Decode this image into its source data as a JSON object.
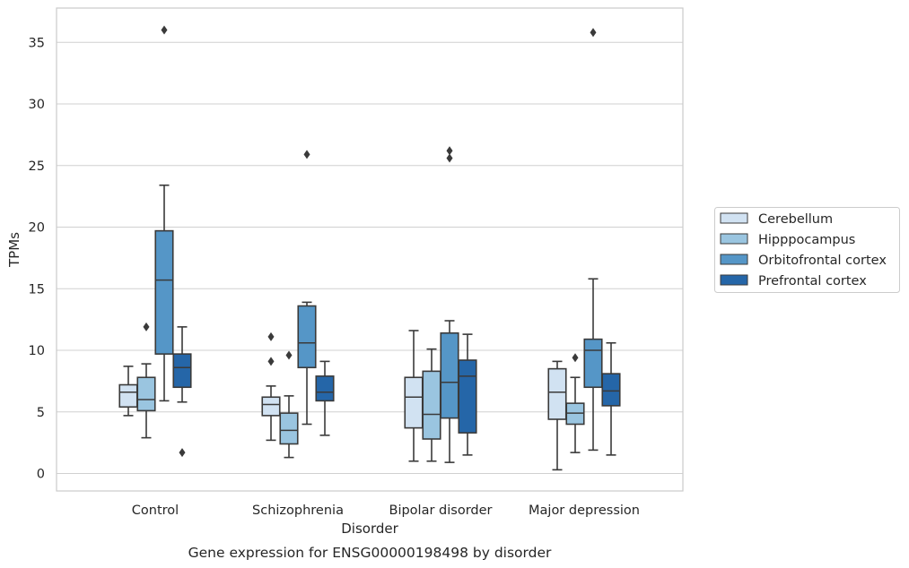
{
  "caption": "Gene expression for ENSG00000198498 by disorder",
  "chart_data": {
    "type": "box",
    "xlabel": "Disorder",
    "ylabel": "TPMs",
    "categories": [
      "Control",
      "Schizophrenia",
      "Bipolar disorder",
      "Major depression"
    ],
    "ylim": [
      -1.5,
      37.3
    ],
    "yticks": [
      0,
      5,
      10,
      15,
      20,
      25,
      30,
      35
    ],
    "grid": true,
    "legend_position": "right",
    "series": [
      {
        "name": "Cerebellum",
        "color": "#d1e2f2",
        "boxes": [
          {
            "whislo": 4.7,
            "q1": 5.4,
            "med": 6.6,
            "q3": 7.2,
            "whishi": 8.7,
            "fliers": []
          },
          {
            "whislo": 2.7,
            "q1": 4.7,
            "med": 5.6,
            "q3": 6.2,
            "whishi": 7.1,
            "fliers": [
              11.1,
              9.1
            ]
          },
          {
            "whislo": 1.0,
            "q1": 3.7,
            "med": 6.2,
            "q3": 7.8,
            "whishi": 11.6,
            "fliers": []
          },
          {
            "whislo": 0.3,
            "q1": 4.4,
            "med": 6.6,
            "q3": 8.5,
            "whishi": 9.1,
            "fliers": []
          }
        ]
      },
      {
        "name": "Hipppocampus",
        "color": "#9ac5e0",
        "boxes": [
          {
            "whislo": 2.9,
            "q1": 5.1,
            "med": 6.0,
            "q3": 7.8,
            "whishi": 8.9,
            "fliers": [
              11.9
            ]
          },
          {
            "whislo": 1.3,
            "q1": 2.4,
            "med": 3.5,
            "q3": 4.9,
            "whishi": 6.3,
            "fliers": [
              9.6
            ]
          },
          {
            "whislo": 1.0,
            "q1": 2.8,
            "med": 4.8,
            "q3": 8.3,
            "whishi": 10.1,
            "fliers": []
          },
          {
            "whislo": 1.7,
            "q1": 4.0,
            "med": 4.9,
            "q3": 5.7,
            "whishi": 7.8,
            "fliers": [
              9.4
            ]
          }
        ]
      },
      {
        "name": "Orbitofrontal cortex",
        "color": "#5596c7",
        "boxes": [
          {
            "whislo": 5.9,
            "q1": 9.7,
            "med": 15.7,
            "q3": 19.7,
            "whishi": 23.4,
            "fliers": [
              36.0
            ]
          },
          {
            "whislo": 4.0,
            "q1": 8.6,
            "med": 10.6,
            "q3": 13.6,
            "whishi": 13.9,
            "fliers": [
              25.9
            ]
          },
          {
            "whislo": 0.9,
            "q1": 4.5,
            "med": 7.4,
            "q3": 11.4,
            "whishi": 12.4,
            "fliers": [
              26.2,
              25.6
            ]
          },
          {
            "whislo": 1.9,
            "q1": 7.0,
            "med": 10.0,
            "q3": 10.9,
            "whishi": 15.8,
            "fliers": [
              35.8
            ]
          }
        ]
      },
      {
        "name": "Prefrontal cortex",
        "color": "#2566a8",
        "boxes": [
          {
            "whislo": 5.8,
            "q1": 7.0,
            "med": 8.6,
            "q3": 9.7,
            "whishi": 11.9,
            "fliers": [
              1.7
            ]
          },
          {
            "whislo": 3.1,
            "q1": 5.9,
            "med": 6.6,
            "q3": 7.9,
            "whishi": 9.1,
            "fliers": []
          },
          {
            "whislo": 1.5,
            "q1": 3.3,
            "med": 7.9,
            "q3": 9.2,
            "whishi": 11.3,
            "fliers": []
          },
          {
            "whislo": 1.5,
            "q1": 5.5,
            "med": 6.7,
            "q3": 8.1,
            "whishi": 10.6,
            "fliers": []
          }
        ]
      }
    ]
  }
}
